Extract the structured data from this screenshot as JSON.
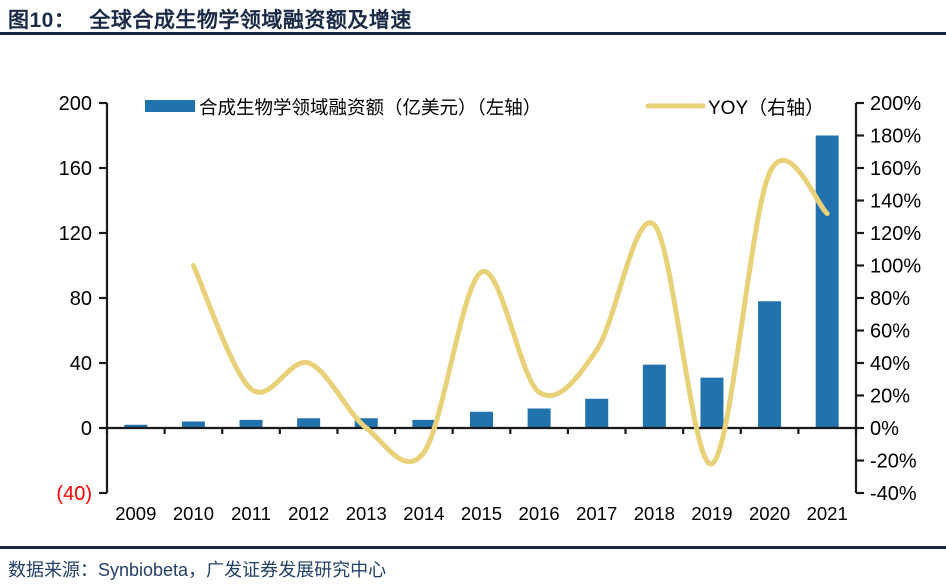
{
  "header": {
    "title_prefix": "图10：",
    "title": "全球合成生物学领域融资额及增速"
  },
  "footer": {
    "source": "数据来源：Synbiobeta，广发证券发展研究中心"
  },
  "chart_data": {
    "type": "combo (bar + smoothed line)",
    "title": "全球合成生物学领域融资额及增速",
    "categories": [
      "2009",
      "2010",
      "2011",
      "2012",
      "2013",
      "2014",
      "2015",
      "2016",
      "2017",
      "2018",
      "2019",
      "2020",
      "2021"
    ],
    "series": [
      {
        "name": "合成生物学领域融资额（亿美元）（左轴）",
        "type": "bar",
        "axis": "left",
        "color": "#2272AD",
        "values": [
          2,
          4,
          5,
          6,
          6,
          5,
          10,
          12,
          18,
          39,
          31,
          78,
          180
        ]
      },
      {
        "name": "YOY（右轴）",
        "type": "line",
        "axis": "right",
        "unit": "%",
        "color": "#E8D179",
        "values": [
          null,
          100,
          24,
          40,
          0,
          -15,
          96,
          22,
          48,
          125,
          -22,
          157,
          132
        ]
      }
    ],
    "left_axis": {
      "range": [
        -40,
        200
      ],
      "ticks": [
        {
          "value": 200,
          "label": "200"
        },
        {
          "value": 160,
          "label": "160"
        },
        {
          "value": 120,
          "label": "120"
        },
        {
          "value": 80,
          "label": "80"
        },
        {
          "value": 40,
          "label": "40"
        },
        {
          "value": 0,
          "label": "0"
        },
        {
          "value": -40,
          "label": "(40)",
          "color": "#FF0000"
        }
      ]
    },
    "right_axis": {
      "range": [
        -40,
        200
      ],
      "ticks": [
        {
          "value": 200,
          "label": "200%"
        },
        {
          "value": 180,
          "label": "180%"
        },
        {
          "value": 160,
          "label": "160%"
        },
        {
          "value": 140,
          "label": "140%"
        },
        {
          "value": 120,
          "label": "120%"
        },
        {
          "value": 100,
          "label": "100%"
        },
        {
          "value": 80,
          "label": "80%"
        },
        {
          "value": 60,
          "label": "60%"
        },
        {
          "value": 40,
          "label": "40%"
        },
        {
          "value": 20,
          "label": "20%"
        },
        {
          "value": 0,
          "label": "0%"
        },
        {
          "value": -20,
          "label": "-20%"
        },
        {
          "value": -40,
          "label": "-40%"
        }
      ]
    },
    "legend_position": "top",
    "grid": false,
    "axis_color": "#1A1A1A",
    "label_color": "#000000"
  }
}
